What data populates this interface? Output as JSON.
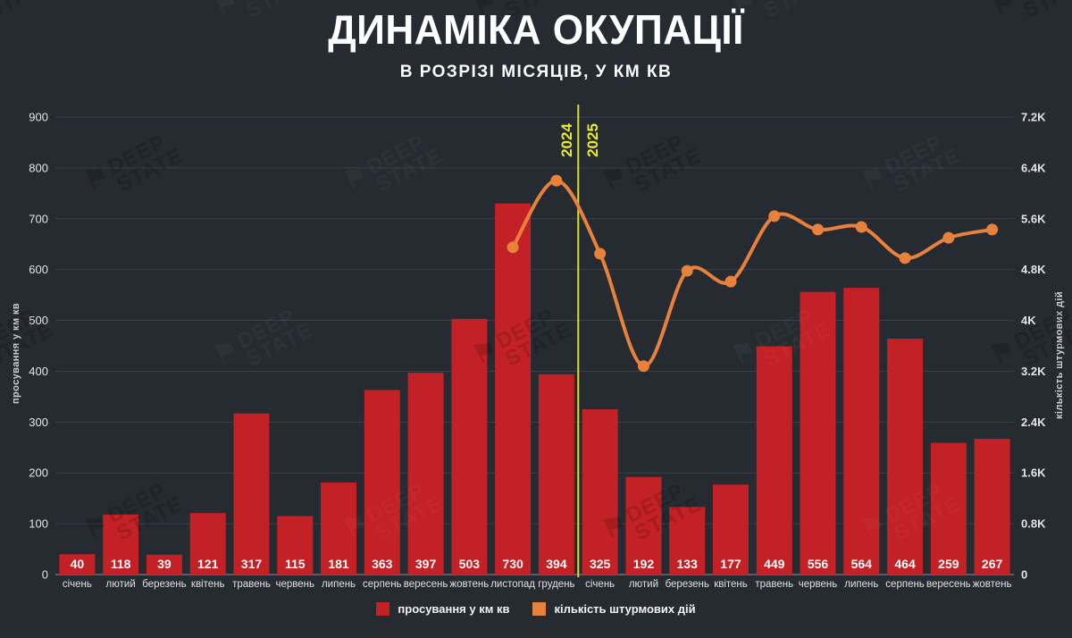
{
  "colors": {
    "background": "#262a31",
    "bar": "#c32125",
    "line": "#e8813c",
    "marker": "#e8813c",
    "divider": "#d8dd2e",
    "year_label": "#e7ee30",
    "title_text": "#ffffff",
    "value_label": "#ffffff",
    "tick_text": "#e4e5e7",
    "month_text": "#dfe0e2",
    "gridline": "#3b3f46",
    "baseline": "#8f9296"
  },
  "watermark": {
    "flag_icon": "⚑",
    "line1": "DEEP",
    "line2": "STATE"
  },
  "chart_data": {
    "type": "bar",
    "title": "ДИНАМІКА ОКУПАЦІЇ",
    "subtitle": "В РОЗРІЗІ МІСЯЦІВ, У КМ КВ",
    "categories": [
      "січень",
      "лютий",
      "березень",
      "квітень",
      "травень",
      "червень",
      "липень",
      "серпень",
      "вересень",
      "жовтень",
      "листопад",
      "грудень",
      "січень",
      "лютий",
      "березень",
      "квітень",
      "травень",
      "червень",
      "липень",
      "серпень",
      "вересень",
      "жовтень"
    ],
    "year_divider": {
      "at_index": 12,
      "left_label": "2024",
      "right_label": "2025"
    },
    "series": [
      {
        "name": "просування у км кв",
        "type": "bar",
        "axis": "left",
        "values": [
          40,
          118,
          39,
          121,
          317,
          115,
          181,
          363,
          397,
          503,
          730,
          394,
          325,
          192,
          133,
          177,
          449,
          556,
          564,
          464,
          259,
          267
        ]
      },
      {
        "name": "кількість штурмових дій",
        "type": "line",
        "axis": "right",
        "values": [
          null,
          null,
          null,
          null,
          null,
          null,
          null,
          null,
          null,
          null,
          5150,
          6200,
          5050,
          3280,
          4780,
          4610,
          5640,
          5430,
          5470,
          4980,
          5300,
          5430
        ]
      }
    ],
    "left_axis": {
      "title": "просування у км кв",
      "min": 0,
      "max": 900,
      "tick_values": [
        0,
        100,
        200,
        300,
        400,
        500,
        600,
        700,
        800,
        900
      ],
      "tick_labels": [
        "0",
        "100",
        "200",
        "300",
        "400",
        "500",
        "600",
        "700",
        "800",
        "900"
      ]
    },
    "right_axis": {
      "title": "кількість штурмових дій",
      "min": 0,
      "max": 7200,
      "tick_values": [
        0,
        800,
        1600,
        2400,
        3200,
        4000,
        4800,
        5600,
        6400,
        7200
      ],
      "tick_labels": [
        "0",
        "0.8K",
        "1.6K",
        "2.4K",
        "3.2K",
        "4K",
        "4.8K",
        "5.6K",
        "6.4K",
        "7.2K"
      ]
    },
    "legend": {
      "bar": "просування у км кв",
      "line": "кількість штурмових дій"
    },
    "grid": true,
    "legend_position": "bottom-center"
  }
}
